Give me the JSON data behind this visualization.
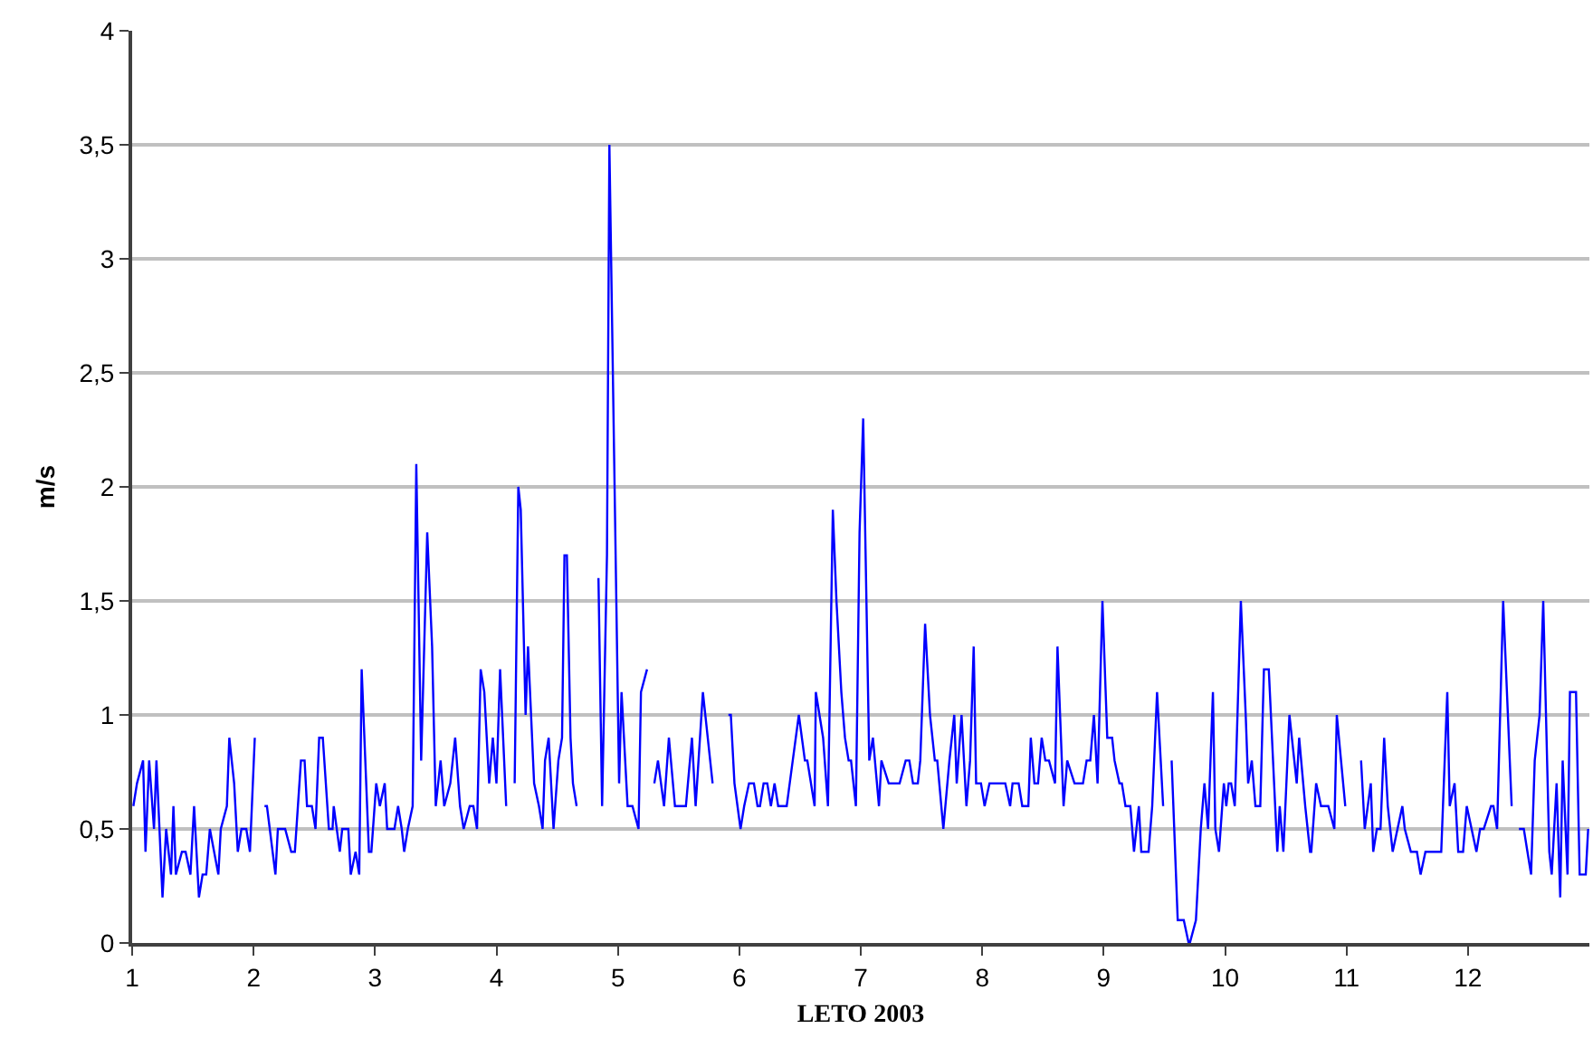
{
  "chart_data": {
    "type": "line",
    "xlabel": "LETO 2003",
    "ylabel": "m/s",
    "xlim": [
      1,
      13
    ],
    "xticks": [
      1,
      2,
      3,
      4,
      5,
      6,
      7,
      8,
      9,
      10,
      11,
      12
    ],
    "ylim": [
      0,
      4
    ],
    "yticks": [
      0,
      {
        "value": 0.5,
        "label": "0,5"
      },
      1,
      {
        "value": 1.5,
        "label": "1,5"
      },
      2,
      {
        "value": 2.5,
        "label": "2,5"
      },
      3,
      {
        "value": 3.5,
        "label": "3,5"
      },
      4
    ],
    "grid": "y",
    "marker": "none",
    "line_style": "solid",
    "series": [
      {
        "color": "#0000ff",
        "x": [
          1.01,
          1.04,
          1.09,
          1.11,
          1.14,
          1.18,
          1.2,
          1.25,
          1.28,
          1.32,
          1.34,
          1.36,
          1.41,
          1.44,
          1.48,
          1.51,
          1.55,
          1.58,
          1.61,
          1.64,
          1.71,
          1.73,
          1.78,
          1.8,
          1.84,
          1.87,
          1.9,
          1.94,
          1.97,
          2.01,
          2.05,
          2.09,
          2.11,
          2.18,
          2.2,
          2.26,
          2.31,
          2.34,
          2.39,
          2.42,
          2.44,
          2.48,
          2.51,
          2.54,
          2.57,
          2.62,
          2.65,
          2.66,
          2.71,
          2.73,
          2.78,
          2.8,
          2.84,
          2.87,
          2.89,
          2.95,
          2.97,
          3.01,
          3.04,
          3.08,
          3.1,
          3.16,
          3.19,
          3.22,
          3.24,
          3.27,
          3.31,
          3.34,
          3.38,
          3.43,
          3.47,
          3.5,
          3.54,
          3.57,
          3.62,
          3.66,
          3.7,
          3.73,
          3.78,
          3.81,
          3.84,
          3.87,
          3.9,
          3.94,
          3.97,
          4.0,
          4.03,
          4.08,
          4.12,
          4.15,
          4.18,
          4.2,
          4.24,
          4.26,
          4.31,
          4.35,
          4.38,
          4.4,
          4.43,
          4.47,
          4.51,
          4.54,
          4.56,
          4.58,
          4.61,
          4.63,
          4.66,
          4.75,
          4.84,
          4.87,
          4.91,
          4.93,
          5.01,
          5.03,
          5.08,
          5.12,
          5.17,
          5.19,
          5.24,
          5.27,
          5.3,
          5.33,
          5.38,
          5.42,
          5.47,
          5.56,
          5.61,
          5.64,
          5.7,
          5.78,
          5.85,
          5.91,
          5.93,
          5.96,
          6.01,
          6.04,
          6.08,
          6.12,
          6.15,
          6.17,
          6.2,
          6.23,
          6.26,
          6.29,
          6.32,
          6.39,
          6.44,
          6.49,
          6.54,
          6.56,
          6.62,
          6.63,
          6.69,
          6.73,
          6.77,
          6.8,
          6.84,
          6.87,
          6.9,
          6.92,
          6.96,
          6.99,
          7.02,
          7.07,
          7.1,
          7.15,
          7.17,
          7.23,
          7.32,
          7.37,
          7.4,
          7.43,
          7.47,
          7.49,
          7.53,
          7.57,
          7.61,
          7.63,
          7.68,
          7.73,
          7.77,
          7.79,
          7.83,
          7.87,
          7.9,
          7.93,
          7.95,
          7.99,
          8.02,
          8.06,
          8.19,
          8.23,
          8.25,
          8.3,
          8.33,
          8.38,
          8.4,
          8.43,
          8.46,
          8.49,
          8.52,
          8.55,
          8.6,
          8.62,
          8.67,
          8.7,
          8.76,
          8.83,
          8.86,
          8.89,
          8.92,
          8.95,
          8.99,
          9.03,
          9.07,
          9.09,
          9.13,
          9.15,
          9.18,
          9.22,
          9.25,
          9.29,
          9.31,
          9.37,
          9.4,
          9.44,
          9.49,
          9.52,
          9.56,
          9.61,
          9.66,
          9.7,
          9.71,
          9.76,
          9.8,
          9.83,
          9.86,
          9.9,
          9.92,
          9.95,
          9.99,
          10.01,
          10.03,
          10.05,
          10.08,
          10.13,
          10.17,
          10.19,
          10.22,
          10.25,
          10.29,
          10.32,
          10.36,
          10.43,
          10.45,
          10.48,
          10.53,
          10.57,
          10.59,
          10.61,
          10.66,
          10.7,
          10.71,
          10.75,
          10.79,
          10.85,
          10.9,
          10.92,
          10.99,
          11.05,
          11.12,
          11.15,
          11.2,
          11.22,
          11.25,
          11.28,
          11.31,
          11.34,
          11.38,
          11.42,
          11.46,
          11.48,
          11.53,
          11.58,
          11.61,
          11.65,
          11.78,
          11.83,
          11.85,
          11.89,
          11.92,
          11.96,
          11.99,
          12.03,
          12.07,
          12.1,
          12.13,
          12.19,
          12.21,
          12.24,
          12.29,
          12.36,
          12.39,
          12.42,
          12.46,
          12.49,
          12.52,
          12.55,
          12.59,
          12.62,
          12.67,
          12.69,
          12.73,
          12.76,
          12.78,
          12.82,
          12.84,
          12.89,
          12.92,
          12.97,
          12.99
        ],
        "values": [
          0.6,
          0.7,
          0.8,
          0.4,
          0.8,
          0.5,
          0.8,
          0.2,
          0.5,
          0.3,
          0.6,
          0.3,
          0.4,
          0.4,
          0.3,
          0.6,
          0.2,
          0.3,
          0.3,
          0.5,
          0.3,
          0.5,
          0.6,
          0.9,
          0.7,
          0.4,
          0.5,
          0.5,
          0.4,
          0.9,
          null,
          0.6,
          0.6,
          0.3,
          0.5,
          0.5,
          0.4,
          0.4,
          0.8,
          0.8,
          0.6,
          0.6,
          0.5,
          0.9,
          0.9,
          0.5,
          0.5,
          0.6,
          0.4,
          0.5,
          0.5,
          0.3,
          0.4,
          0.3,
          1.2,
          0.4,
          0.4,
          0.7,
          0.6,
          0.7,
          0.5,
          0.5,
          0.6,
          0.5,
          0.4,
          0.5,
          0.6,
          2.1,
          0.8,
          1.8,
          1.3,
          0.6,
          0.8,
          0.6,
          0.7,
          0.9,
          0.6,
          0.5,
          0.6,
          0.6,
          0.5,
          1.2,
          1.1,
          0.7,
          0.9,
          0.7,
          1.2,
          0.6,
          null,
          0.7,
          2.0,
          1.9,
          1.0,
          1.3,
          0.7,
          0.6,
          0.5,
          0.8,
          0.9,
          0.5,
          0.8,
          0.9,
          1.7,
          1.7,
          0.9,
          0.7,
          0.6,
          null,
          1.6,
          0.6,
          1.7,
          3.5,
          0.7,
          1.1,
          0.6,
          0.6,
          0.5,
          1.1,
          1.2,
          null,
          0.7,
          0.8,
          0.6,
          0.9,
          0.6,
          0.6,
          0.9,
          0.6,
          1.1,
          0.7,
          null,
          1.0,
          1.0,
          0.7,
          0.5,
          0.6,
          0.7,
          0.7,
          0.6,
          0.6,
          0.7,
          0.7,
          0.6,
          0.7,
          0.6,
          0.6,
          0.8,
          1.0,
          0.8,
          0.8,
          0.6,
          1.1,
          0.9,
          0.6,
          1.9,
          1.5,
          1.1,
          0.9,
          0.8,
          0.8,
          0.6,
          1.8,
          2.3,
          0.8,
          0.9,
          0.6,
          0.8,
          0.7,
          0.7,
          0.8,
          0.8,
          0.7,
          0.7,
          0.8,
          1.4,
          1.0,
          0.8,
          0.8,
          0.5,
          0.8,
          1.0,
          0.7,
          1.0,
          0.6,
          0.8,
          1.3,
          0.7,
          0.7,
          0.6,
          0.7,
          0.7,
          0.6,
          0.7,
          0.7,
          0.6,
          0.6,
          0.9,
          0.7,
          0.7,
          0.9,
          0.8,
          0.8,
          0.7,
          1.3,
          0.6,
          0.8,
          0.7,
          0.7,
          0.8,
          0.8,
          1.0,
          0.7,
          1.5,
          0.9,
          0.9,
          0.8,
          0.7,
          0.7,
          0.6,
          0.6,
          0.4,
          0.6,
          0.4,
          0.4,
          0.6,
          1.1,
          0.6,
          null,
          0.8,
          0.1,
          0.1,
          0.0,
          0.0,
          0.1,
          0.5,
          0.7,
          0.5,
          1.1,
          0.5,
          0.4,
          0.7,
          0.6,
          0.7,
          0.7,
          0.6,
          1.5,
          1.0,
          0.7,
          0.8,
          0.6,
          0.6,
          1.2,
          1.2,
          0.4,
          0.6,
          0.4,
          1.0,
          0.8,
          0.7,
          0.9,
          0.6,
          0.4,
          0.4,
          0.7,
          0.6,
          0.6,
          0.5,
          1.0,
          0.6,
          null,
          0.8,
          0.5,
          0.7,
          0.4,
          0.5,
          0.5,
          0.9,
          0.6,
          0.4,
          0.5,
          0.6,
          0.5,
          0.4,
          0.4,
          0.3,
          0.4,
          0.4,
          1.1,
          0.6,
          0.7,
          0.4,
          0.4,
          0.6,
          0.5,
          0.4,
          0.5,
          0.5,
          0.6,
          0.6,
          0.5,
          1.5,
          0.6,
          null,
          0.5,
          0.5,
          0.4,
          0.3,
          0.8,
          1.0,
          1.5,
          0.4,
          0.3,
          0.7,
          0.2,
          0.8,
          0.3,
          1.1,
          1.1,
          0.3,
          0.3,
          0.5
        ]
      }
    ]
  }
}
